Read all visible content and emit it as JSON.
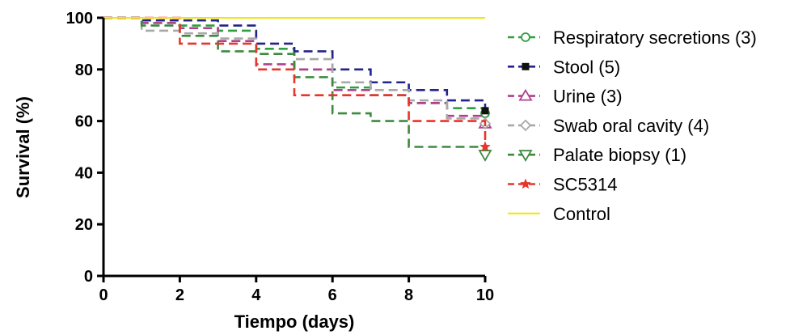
{
  "chart_data": {
    "type": "line",
    "step": true,
    "xlabel": "Tiempo (days)",
    "ylabel": "Survival (%)",
    "xlim": [
      0,
      10
    ],
    "ylim": [
      0,
      100
    ],
    "x_ticks": [
      "0",
      "2",
      "4",
      "6",
      "8",
      "10"
    ],
    "y_ticks": [
      "0",
      "20",
      "40",
      "60",
      "80",
      "100"
    ],
    "grid": false,
    "legend_position": "right",
    "series": [
      {
        "name": "Respiratory secretions (3)",
        "color": "#2e9e3e",
        "marker": "circle-open",
        "x": [
          0,
          1,
          2,
          3,
          4,
          5,
          6,
          7,
          8,
          9,
          10
        ],
        "y": [
          100,
          98,
          97,
          95,
          88,
          80,
          73,
          70,
          67,
          65,
          63
        ]
      },
      {
        "name": "Stool (5)",
        "color": "#23238c",
        "marker": "square-filled",
        "x": [
          0,
          1,
          3,
          4,
          5,
          6,
          7,
          8,
          9,
          10
        ],
        "y": [
          100,
          99,
          97,
          90,
          87,
          80,
          75,
          72,
          68,
          64
        ]
      },
      {
        "name": "Urine (3)",
        "color": "#b0408f",
        "marker": "triangle-up-open",
        "x": [
          0,
          1,
          2,
          3,
          4,
          5,
          6,
          7,
          8,
          9,
          10
        ],
        "y": [
          100,
          98,
          96,
          91,
          82,
          80,
          72,
          70,
          67,
          62,
          59
        ]
      },
      {
        "name": "Swab oral cavity (4)",
        "color": "#a8a8a8",
        "marker": "diamond-open",
        "x": [
          0,
          1,
          2,
          3,
          4,
          5,
          6,
          7,
          8,
          9,
          10
        ],
        "y": [
          100,
          95,
          94,
          92,
          86,
          84,
          75,
          72,
          68,
          61,
          59
        ]
      },
      {
        "name": "Palate biopsy (1)",
        "color": "#3c8a3e",
        "marker": "triangle-down-open",
        "x": [
          0,
          1,
          2,
          3,
          4,
          5,
          6,
          7,
          8,
          9,
          10
        ],
        "y": [
          100,
          97,
          93,
          87,
          86,
          77,
          63,
          60,
          50,
          50,
          47
        ]
      },
      {
        "name": "SC5314",
        "color": "#e8352b",
        "marker": "star-filled",
        "x": [
          0,
          2,
          4,
          5,
          6,
          7,
          8,
          9,
          10
        ],
        "y": [
          100,
          90,
          80,
          70,
          70,
          70,
          60,
          60,
          50
        ]
      },
      {
        "name": "Control",
        "color": "#f2e600",
        "marker": "none",
        "x": [
          0,
          10
        ],
        "y": [
          100,
          100
        ]
      }
    ]
  }
}
